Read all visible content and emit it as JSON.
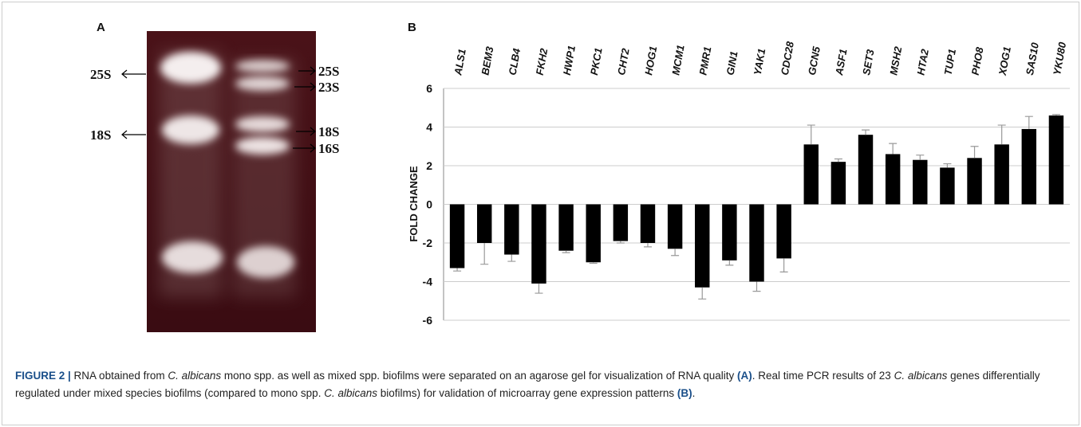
{
  "panel_a": {
    "label": "A",
    "left_markers": [
      "25S",
      "18S"
    ],
    "right_markers": [
      "25S",
      "23S",
      "18S",
      "16S"
    ]
  },
  "chart_data": {
    "type": "bar",
    "panel_label": "B",
    "y_label": "FOLD CHANGE",
    "categories": [
      "ALS1",
      "BEM3",
      "CLB4",
      "FKH2",
      "HWP1",
      "PKC1",
      "CHT2",
      "HOG1",
      "MCM1",
      "PMR1",
      "GIN1",
      "YAK1",
      "CDC28",
      "GCN5",
      "ASF1",
      "SET3",
      "MSH2",
      "HTA2",
      "TUP1",
      "PHO8",
      "XOG1",
      "SAS10",
      "YKU80"
    ],
    "values": [
      -3.3,
      -2.0,
      -2.6,
      -4.1,
      -2.4,
      -3.0,
      -1.9,
      -2.0,
      -2.3,
      -4.3,
      -2.9,
      -4.0,
      -2.8,
      3.1,
      2.2,
      3.6,
      2.6,
      2.3,
      1.9,
      2.4,
      3.1,
      3.9,
      4.6
    ],
    "errors": [
      0.15,
      1.1,
      0.35,
      0.5,
      0.1,
      0.05,
      0.1,
      0.2,
      0.35,
      0.6,
      0.25,
      0.5,
      0.7,
      1.0,
      0.15,
      0.25,
      0.55,
      0.25,
      0.2,
      0.6,
      1.0,
      0.65,
      0.05
    ],
    "color": "#000000",
    "ylim": [
      -6,
      6
    ],
    "yticks": [
      -6,
      -4,
      -2,
      0,
      2,
      4,
      6
    ],
    "grid": true
  },
  "caption": [
    "FIGURE 2 |",
    " RNA obtained from ",
    "C. albicans",
    " mono spp. as well as mixed spp. biofilms were separated on an agarose gel for visualization of RNA quality ",
    "(A)",
    ". Real time PCR results of 23 ",
    "C. albicans",
    " genes differentially regulated under mixed species biofilms (compared to mono spp. ",
    "C. albicans",
    " biofilms) for validation of microarray gene expression patterns ",
    "(B)",
    "."
  ]
}
